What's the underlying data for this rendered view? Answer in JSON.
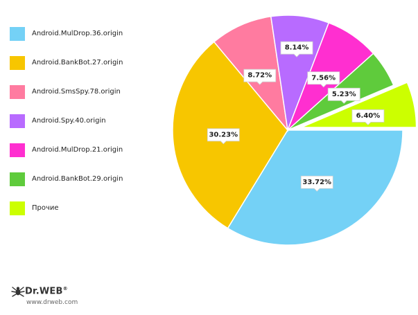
{
  "chart_data": {
    "type": "pie",
    "legend_position": "left",
    "slices": [
      {
        "label": "Android.MulDrop.36.origin",
        "value": 33.72,
        "display": "33.72%",
        "color": "#74D1F6"
      },
      {
        "label": "Android.BankBot.27.origin",
        "value": 30.23,
        "display": "30.23%",
        "color": "#F7C600"
      },
      {
        "label": "Android.SmsSpy.78.origin",
        "value": 8.72,
        "display": "8.72%",
        "color": "#FF7BA0"
      },
      {
        "label": "Android.Spy.40.origin",
        "value": 8.14,
        "display": "8.14%",
        "color": "#B86BFF"
      },
      {
        "label": "Android.MulDrop.21.origin",
        "value": 7.56,
        "display": "7.56%",
        "color": "#FF2FD0"
      },
      {
        "label": "Android.BankBot.29.origin",
        "value": 5.23,
        "display": "5.23%",
        "color": "#5FCB3C"
      },
      {
        "label": "Прочие",
        "value": 6.4,
        "display": "6.40%",
        "color": "#CCFF00"
      }
    ]
  },
  "brand": {
    "name": "Dr.WEB",
    "mark": "®",
    "url": "www.drweb.com",
    "icon": "spider-logo-icon"
  }
}
